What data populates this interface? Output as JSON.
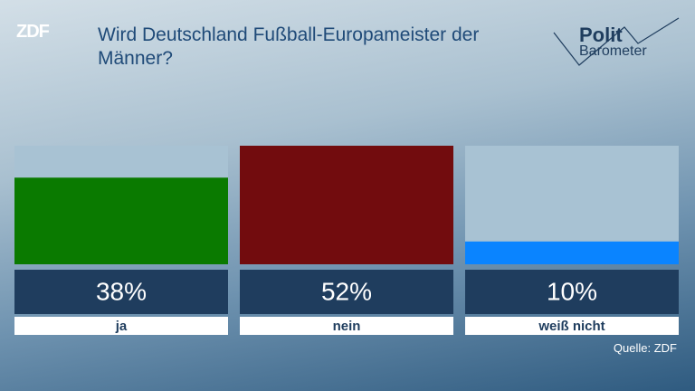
{
  "chart_data": {
    "type": "bar",
    "title": "Wird Deutschland Fußball-Europameister der Männer?",
    "categories": [
      "ja",
      "nein",
      "weiß nicht"
    ],
    "values": [
      38,
      52,
      10
    ],
    "value_labels": [
      "38%",
      "52%",
      "10%"
    ],
    "colors": [
      "#0a7a00",
      "#720c0e",
      "#0a84ff"
    ],
    "ylim": [
      0,
      52
    ],
    "source": "Quelle: ZDF"
  },
  "branding": {
    "broadcaster": "ZDF",
    "logo_line1": "Polit",
    "logo_line2": "Barometer"
  }
}
